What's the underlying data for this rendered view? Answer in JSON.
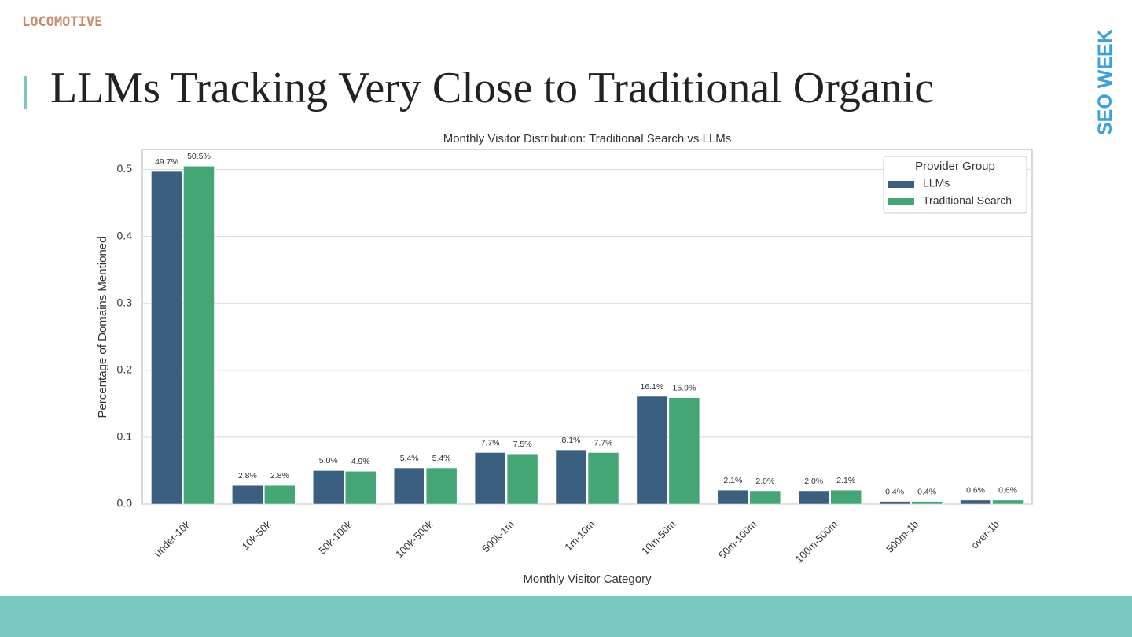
{
  "header": {
    "logo": "LOCOMOTIVE",
    "brand": "SEO WEEK",
    "title": "LLMs Tracking Very Close to Traditional Organic"
  },
  "chart_data": {
    "type": "bar",
    "title": "Monthly Visitor Distribution: Traditional Search vs LLMs",
    "x_label": "Monthly Visitor Category",
    "y_label": "Percentage of Domains Mentioned",
    "legend_title": "Provider Group",
    "legend_position": "upper right",
    "grid": true,
    "categories": [
      "under-10k",
      "10k-50k",
      "50k-100k",
      "100k-500k",
      "500k-1m",
      "1m-10m",
      "10m-50m",
      "50m-100m",
      "100m-500m",
      "500m-1b",
      "over-1b"
    ],
    "series": [
      {
        "name": "LLMs",
        "color": "#3b5f7e",
        "values": [
          0.497,
          0.028,
          0.05,
          0.054,
          0.077,
          0.081,
          0.161,
          0.021,
          0.02,
          0.004,
          0.006
        ],
        "value_labels": [
          "49.7%",
          "2.8%",
          "5.0%",
          "5.4%",
          "7.7%",
          "8.1%",
          "16.1%",
          "2.1%",
          "2.0%",
          "0.4%",
          "0.6%"
        ]
      },
      {
        "name": "Traditional Search",
        "color": "#44a674",
        "values": [
          0.505,
          0.028,
          0.049,
          0.054,
          0.075,
          0.077,
          0.159,
          0.02,
          0.021,
          0.004,
          0.006
        ],
        "value_labels": [
          "50.5%",
          "2.8%",
          "4.9%",
          "5.4%",
          "7.5%",
          "7.7%",
          "15.9%",
          "2.0%",
          "2.1%",
          "0.4%",
          "0.6%"
        ]
      }
    ],
    "ylim": [
      0,
      0.53
    ],
    "yticks": [
      {
        "value": 0,
        "label": "0.0"
      },
      0.1,
      0.2,
      0.3,
      0.4,
      0.5
    ]
  }
}
